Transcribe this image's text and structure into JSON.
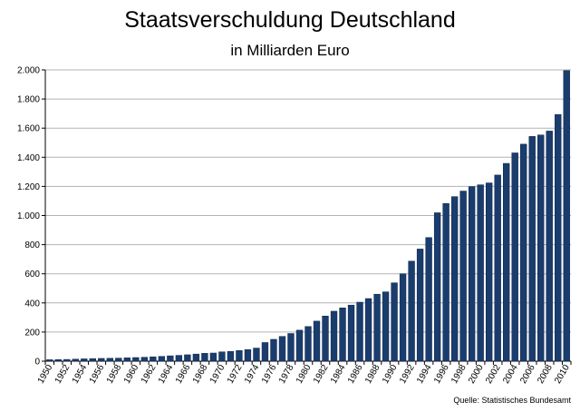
{
  "chart_data": {
    "type": "bar",
    "title": "Staatsverschuldung Deutschland",
    "subtitle": "in Milliarden Euro",
    "source": "Quelle: Statistisches Bundesamt",
    "xlabel": "",
    "ylabel": "",
    "ylim": [
      0,
      2000
    ],
    "y_ticks": [
      0,
      200,
      400,
      600,
      800,
      1000,
      1200,
      1400,
      1600,
      1800,
      2000
    ],
    "y_tick_labels": [
      "0",
      "200",
      "400",
      "600",
      "800",
      "1.000",
      "1.200",
      "1.400",
      "1.600",
      "1.800",
      "2.000"
    ],
    "categories": [
      "1950",
      "1951",
      "1952",
      "1953",
      "1954",
      "1955",
      "1956",
      "1957",
      "1958",
      "1959",
      "1960",
      "1961",
      "1962",
      "1963",
      "1964",
      "1965",
      "1966",
      "1967",
      "1968",
      "1969",
      "1970",
      "1971",
      "1972",
      "1973",
      "1974",
      "1975",
      "1976",
      "1977",
      "1978",
      "1979",
      "1980",
      "1981",
      "1982",
      "1983",
      "1984",
      "1985",
      "1986",
      "1987",
      "1988",
      "1989",
      "1990",
      "1991",
      "1992",
      "1993",
      "1994",
      "1995",
      "1996",
      "1997",
      "1998",
      "1999",
      "2000",
      "2001",
      "2002",
      "2003",
      "2004",
      "2005",
      "2006",
      "2007",
      "2008",
      "2009",
      "2010"
    ],
    "x_tick_labels": [
      "1950",
      "1952",
      "1954",
      "1956",
      "1958",
      "1960",
      "1962",
      "1964",
      "1966",
      "1968",
      "1970",
      "1972",
      "1974",
      "1976",
      "1978",
      "1980",
      "1982",
      "1984",
      "1986",
      "1988",
      "1990",
      "1992",
      "1994",
      "1996",
      "1998",
      "2000",
      "2002",
      "2004",
      "2006",
      "2008",
      "2010"
    ],
    "values": [
      10,
      11,
      12,
      14,
      16,
      18,
      19,
      20,
      21,
      23,
      25,
      27,
      30,
      33,
      37,
      40,
      44,
      49,
      54,
      56,
      64,
      67,
      73,
      80,
      90,
      128,
      150,
      170,
      190,
      213,
      238,
      275,
      310,
      343,
      366,
      385,
      405,
      430,
      460,
      476,
      538,
      600,
      687,
      770,
      849,
      1019,
      1083,
      1130,
      1168,
      1199,
      1211,
      1224,
      1278,
      1358,
      1430,
      1490,
      1543,
      1553,
      1580,
      1694,
      1995
    ],
    "bar_color": "#1a3d6e",
    "grid": true,
    "legend": "none"
  }
}
